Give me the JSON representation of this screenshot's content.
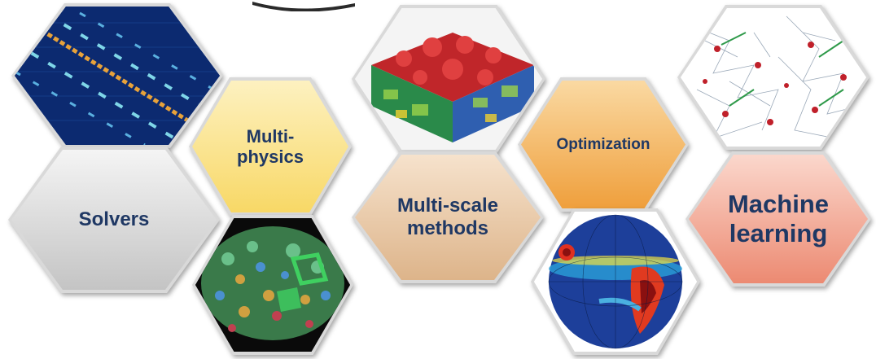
{
  "labels": {
    "multiphysics": "Multi-\nphysics",
    "optimization": "Optimization",
    "solvers": "Solvers",
    "multiscale": "Multi-scale\nmethods",
    "machine_learning": "Machine\nlearning"
  },
  "colors": {
    "text": "#1f3864",
    "multiphysics_fill": "#fbe38a",
    "optimization_fill": "#f3b866",
    "solvers_fill": "#d3d3d3",
    "multiscale_fill": "#e8c7a4",
    "machine_learning_fill": "#f3a491"
  }
}
